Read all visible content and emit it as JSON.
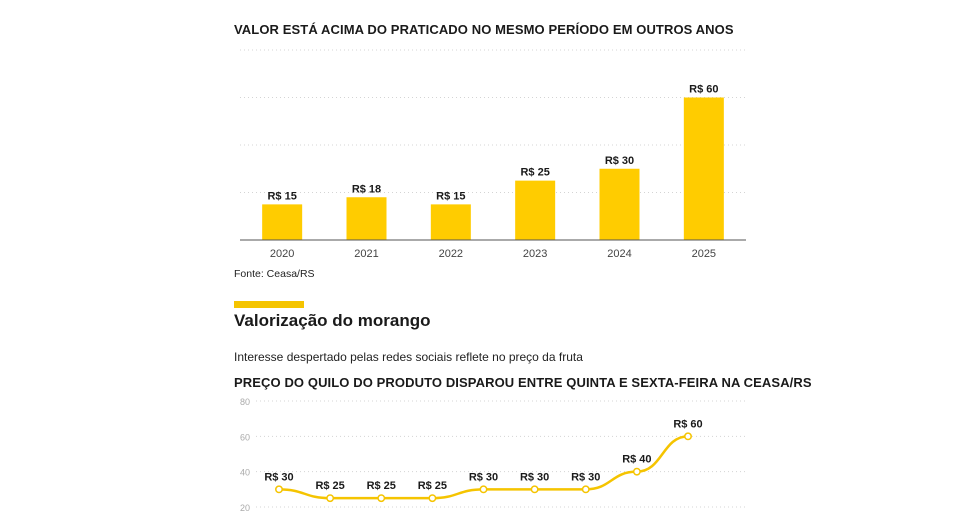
{
  "chart_data": [
    {
      "type": "bar",
      "title": "VALOR ESTÁ ACIMA DO PRATICADO NO MESMO PERÍODO EM OUTROS ANOS",
      "categories": [
        "2020",
        "2021",
        "2022",
        "2023",
        "2024",
        "2025"
      ],
      "values": [
        15,
        18,
        15,
        25,
        30,
        60
      ],
      "labels": [
        "R$ 15",
        "R$ 18",
        "R$ 15",
        "R$ 25",
        "R$ 30",
        "R$ 60"
      ],
      "ylim": [
        0,
        80
      ],
      "grid": true,
      "color": "#ffcc00",
      "source": "Fonte: Ceasa/RS"
    },
    {
      "type": "line",
      "title": "PREÇO DO QUILO DO PRODUTO DISPAROU ENTRE QUINTA E SEXTA-FEIRA NA CEASA/RS",
      "values": [
        30,
        25,
        25,
        25,
        30,
        30,
        30,
        40,
        60
      ],
      "labels": [
        "R$ 30",
        "R$ 25",
        "R$ 25",
        "R$ 25",
        "R$ 30",
        "R$ 30",
        "R$ 30",
        "R$ 40",
        "R$ 60"
      ],
      "yticks": [
        "80",
        "60",
        "40",
        "20"
      ],
      "ylim": [
        20,
        80
      ],
      "grid": true,
      "color": "#f5c400"
    }
  ],
  "section": {
    "heading": "Valorização do morango",
    "subtitle": "Interesse despertado pelas redes sociais reflete no preço da fruta"
  }
}
